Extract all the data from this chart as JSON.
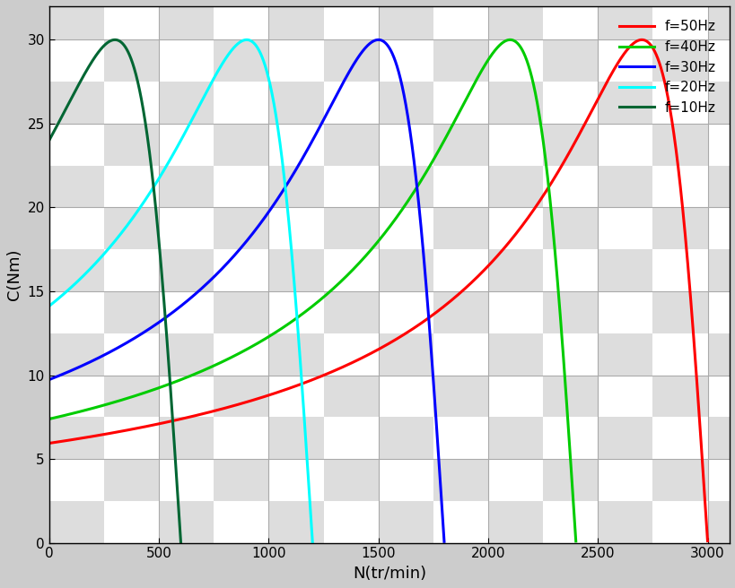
{
  "xlabel": "N(tr/min)",
  "ylabel": "C(Nm)",
  "xlim": [
    0,
    3100
  ],
  "ylim": [
    0,
    32
  ],
  "xticks": [
    0,
    500,
    1000,
    1500,
    2000,
    2500,
    3000
  ],
  "yticks": [
    0,
    5,
    10,
    15,
    20,
    25,
    30
  ],
  "curves": [
    {
      "label": "f=50Hz",
      "color": "#ff0000",
      "Ns": 3000,
      "sm": 0.1,
      "Cmax": 30.0,
      "C0_target": 6.5
    },
    {
      "label": "f=40Hz",
      "color": "#00cc00",
      "Ns": 2400,
      "sm": 0.125,
      "Cmax": 30.0,
      "C0_target": 8.0
    },
    {
      "label": "f=30Hz",
      "color": "#0000ff",
      "Ns": 1800,
      "sm": 0.1667,
      "Cmax": 30.0,
      "C0_target": 11.0
    },
    {
      "label": "f=20Hz",
      "color": "#00ffff",
      "Ns": 1200,
      "sm": 0.25,
      "Cmax": 30.0,
      "C0_target": 15.0
    },
    {
      "label": "f=10Hz",
      "color": "#006633",
      "Ns": 600,
      "sm": 0.5,
      "Cmax": 30.0,
      "C0_target": 26.0
    }
  ],
  "checker_color1": "#cccccc",
  "checker_color2": "#ffffff",
  "checker_size": 20,
  "grid_color": "#aaaaaa",
  "legend_fontsize": 11,
  "axis_fontsize": 13,
  "line_width": 2.2
}
